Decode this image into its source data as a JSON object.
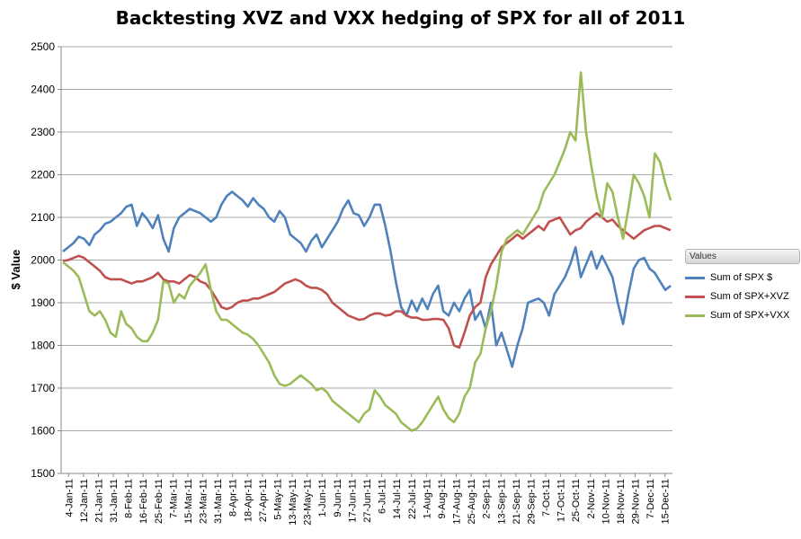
{
  "chart_data": {
    "type": "line",
    "title": "Backtesting XVZ and VXX hedging of SPX for all of 2011",
    "xlabel": "",
    "ylabel": "$ Value",
    "ylim": [
      1500,
      2500
    ],
    "yticks": [
      1500,
      1600,
      1700,
      1800,
      1900,
      2000,
      2100,
      2200,
      2300,
      2400,
      2500
    ],
    "grid": "horizontal",
    "legend_position": "right",
    "legend_title": "Values",
    "x_tick_labels": [
      "4-Jan-11",
      "12-Jan-11",
      "21-Jan-11",
      "31-Jan-11",
      "8-Feb-11",
      "16-Feb-11",
      "25-Feb-11",
      "7-Mar-11",
      "15-Mar-11",
      "23-Mar-11",
      "31-Mar-11",
      "8-Apr-11",
      "18-Apr-11",
      "27-Apr-11",
      "5-May-11",
      "13-May-11",
      "23-May-11",
      "1-Jun-11",
      "9-Jun-11",
      "17-Jun-11",
      "27-Jun-11",
      "6-Jul-11",
      "14-Jul-11",
      "22-Jul-11",
      "1-Aug-11",
      "9-Aug-11",
      "17-Aug-11",
      "25-Aug-11",
      "2-Sep-11",
      "13-Sep-11",
      "21-Sep-11",
      "29-Sep-11",
      "7-Oct-11",
      "17-Oct-11",
      "25-Oct-11",
      "2-Nov-11",
      "10-Nov-11",
      "18-Nov-11",
      "29-Nov-11",
      "7-Dec-11",
      "15-Dec-11"
    ],
    "series": [
      {
        "name": "Sum of  SPX $",
        "color": "#4f81bd",
        "values": [
          2020,
          2030,
          2040,
          2055,
          2050,
          2035,
          2060,
          2070,
          2085,
          2090,
          2100,
          2110,
          2125,
          2130,
          2080,
          2110,
          2095,
          2075,
          2105,
          2050,
          2020,
          2075,
          2100,
          2110,
          2120,
          2115,
          2110,
          2100,
          2090,
          2100,
          2130,
          2150,
          2160,
          2150,
          2140,
          2125,
          2145,
          2130,
          2120,
          2100,
          2090,
          2115,
          2100,
          2060,
          2050,
          2040,
          2020,
          2045,
          2060,
          2030,
          2050,
          2070,
          2090,
          2120,
          2140,
          2110,
          2105,
          2080,
          2100,
          2130,
          2130,
          2080,
          2020,
          1950,
          1890,
          1870,
          1905,
          1880,
          1910,
          1885,
          1920,
          1940,
          1880,
          1870,
          1900,
          1880,
          1910,
          1930,
          1860,
          1880,
          1840,
          1900,
          1800,
          1830,
          1790,
          1750,
          1800,
          1840,
          1900,
          1905,
          1910,
          1900,
          1870,
          1920,
          1940,
          1960,
          1990,
          2030,
          1960,
          1990,
          2020,
          1980,
          2010,
          1985,
          1960,
          1900,
          1850,
          1920,
          1980,
          2000,
          2005,
          1980,
          1970,
          1950,
          1930,
          1940
        ]
      },
      {
        "name": "Sum of SPX+XVZ",
        "color": "#c0504d",
        "values": [
          1998,
          2000,
          2005,
          2010,
          2005,
          1995,
          1985,
          1975,
          1960,
          1955,
          1955,
          1955,
          1950,
          1945,
          1950,
          1950,
          1955,
          1960,
          1970,
          1955,
          1950,
          1950,
          1945,
          1955,
          1965,
          1960,
          1950,
          1945,
          1930,
          1910,
          1890,
          1885,
          1890,
          1900,
          1905,
          1905,
          1910,
          1910,
          1915,
          1920,
          1925,
          1935,
          1945,
          1950,
          1955,
          1950,
          1940,
          1935,
          1935,
          1930,
          1920,
          1900,
          1890,
          1880,
          1870,
          1865,
          1860,
          1862,
          1870,
          1875,
          1875,
          1870,
          1872,
          1880,
          1880,
          1870,
          1865,
          1865,
          1860,
          1860,
          1862,
          1862,
          1860,
          1840,
          1800,
          1795,
          1830,
          1870,
          1890,
          1900,
          1960,
          1990,
          2010,
          2030,
          2040,
          2050,
          2060,
          2050,
          2060,
          2070,
          2080,
          2070,
          2090,
          2095,
          2100,
          2080,
          2060,
          2070,
          2075,
          2090,
          2100,
          2110,
          2100,
          2090,
          2095,
          2080,
          2070,
          2060,
          2050,
          2060,
          2070,
          2075,
          2080,
          2080,
          2075,
          2070
        ]
      },
      {
        "name": "Sum of SPX+VXX",
        "color": "#9bbb59",
        "values": [
          1995,
          1985,
          1975,
          1960,
          1920,
          1880,
          1870,
          1880,
          1860,
          1830,
          1820,
          1880,
          1850,
          1840,
          1820,
          1810,
          1810,
          1830,
          1860,
          1950,
          1945,
          1900,
          1920,
          1910,
          1940,
          1955,
          1970,
          1990,
          1930,
          1880,
          1860,
          1860,
          1850,
          1840,
          1830,
          1825,
          1815,
          1800,
          1780,
          1760,
          1730,
          1710,
          1705,
          1710,
          1720,
          1730,
          1720,
          1710,
          1695,
          1700,
          1690,
          1670,
          1660,
          1650,
          1640,
          1630,
          1620,
          1640,
          1650,
          1695,
          1680,
          1660,
          1650,
          1640,
          1620,
          1610,
          1600,
          1605,
          1620,
          1640,
          1660,
          1680,
          1650,
          1630,
          1620,
          1640,
          1680,
          1700,
          1760,
          1780,
          1840,
          1880,
          1940,
          2020,
          2050,
          2060,
          2070,
          2060,
          2080,
          2100,
          2120,
          2160,
          2180,
          2200,
          2230,
          2260,
          2300,
          2280,
          2440,
          2300,
          2220,
          2150,
          2100,
          2180,
          2160,
          2100,
          2050,
          2120,
          2200,
          2180,
          2150,
          2100,
          2250,
          2230,
          2180,
          2140
        ]
      }
    ]
  }
}
